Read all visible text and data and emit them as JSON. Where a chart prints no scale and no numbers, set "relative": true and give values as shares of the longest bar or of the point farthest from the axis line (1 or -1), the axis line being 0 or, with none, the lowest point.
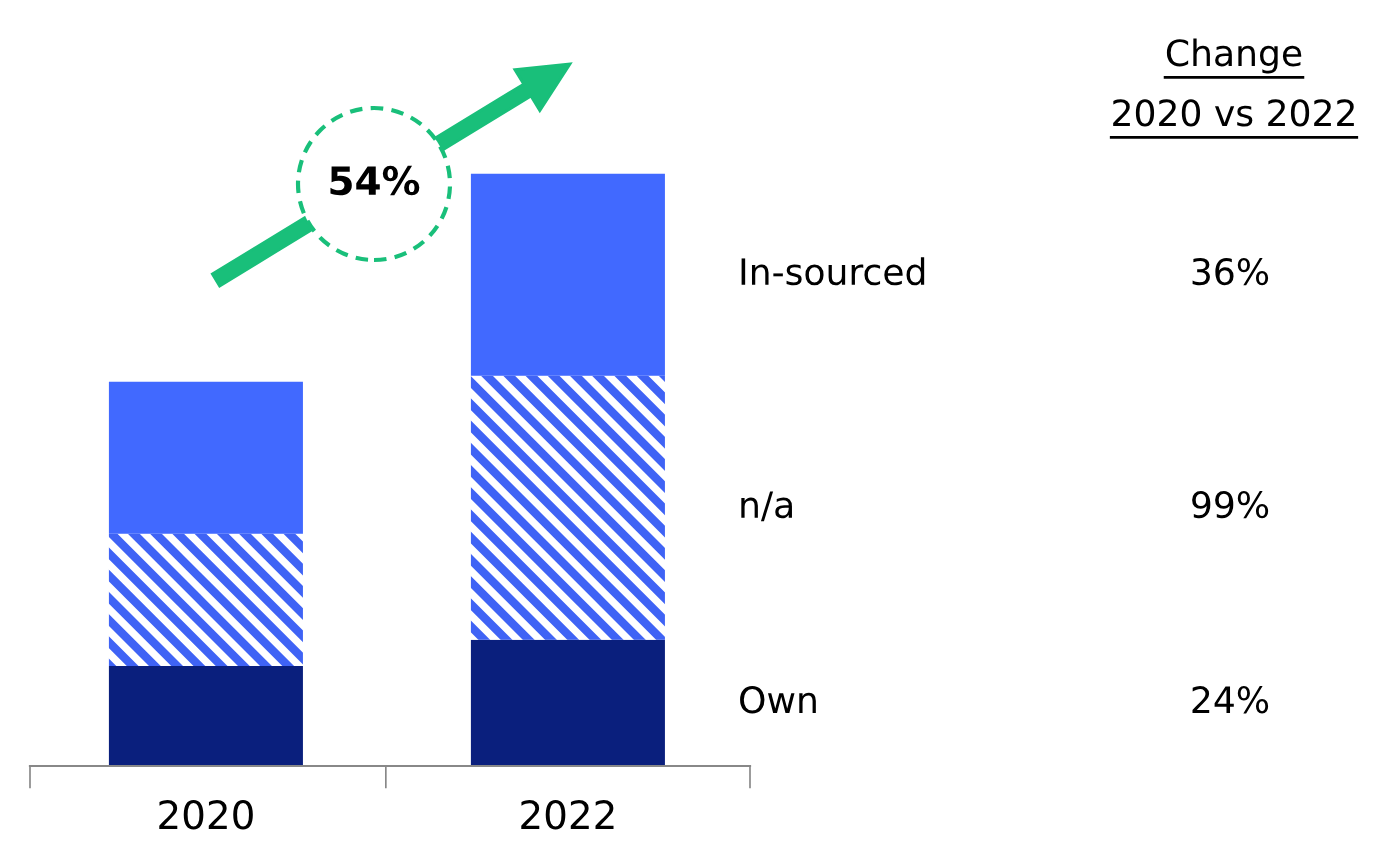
{
  "chart_data": {
    "type": "bar",
    "stacked": true,
    "relative": true,
    "categories": [
      "2020",
      "2022"
    ],
    "series": [
      {
        "name": "Own",
        "color": "#0a1f7d",
        "values": [
          0.169,
          0.213
        ]
      },
      {
        "name": "n/a",
        "color": "#3f63f5",
        "values": [
          0.223,
          0.446
        ]
      },
      {
        "name": "In-sourced",
        "color": "#4169ff",
        "values": [
          0.257,
          0.341
        ]
      }
    ],
    "annotations": [
      "Change\n2020 vs 2022",
      "54%",
      "24%",
      "99%",
      "36%"
    ],
    "legend": false,
    "grid": false
  }
}
